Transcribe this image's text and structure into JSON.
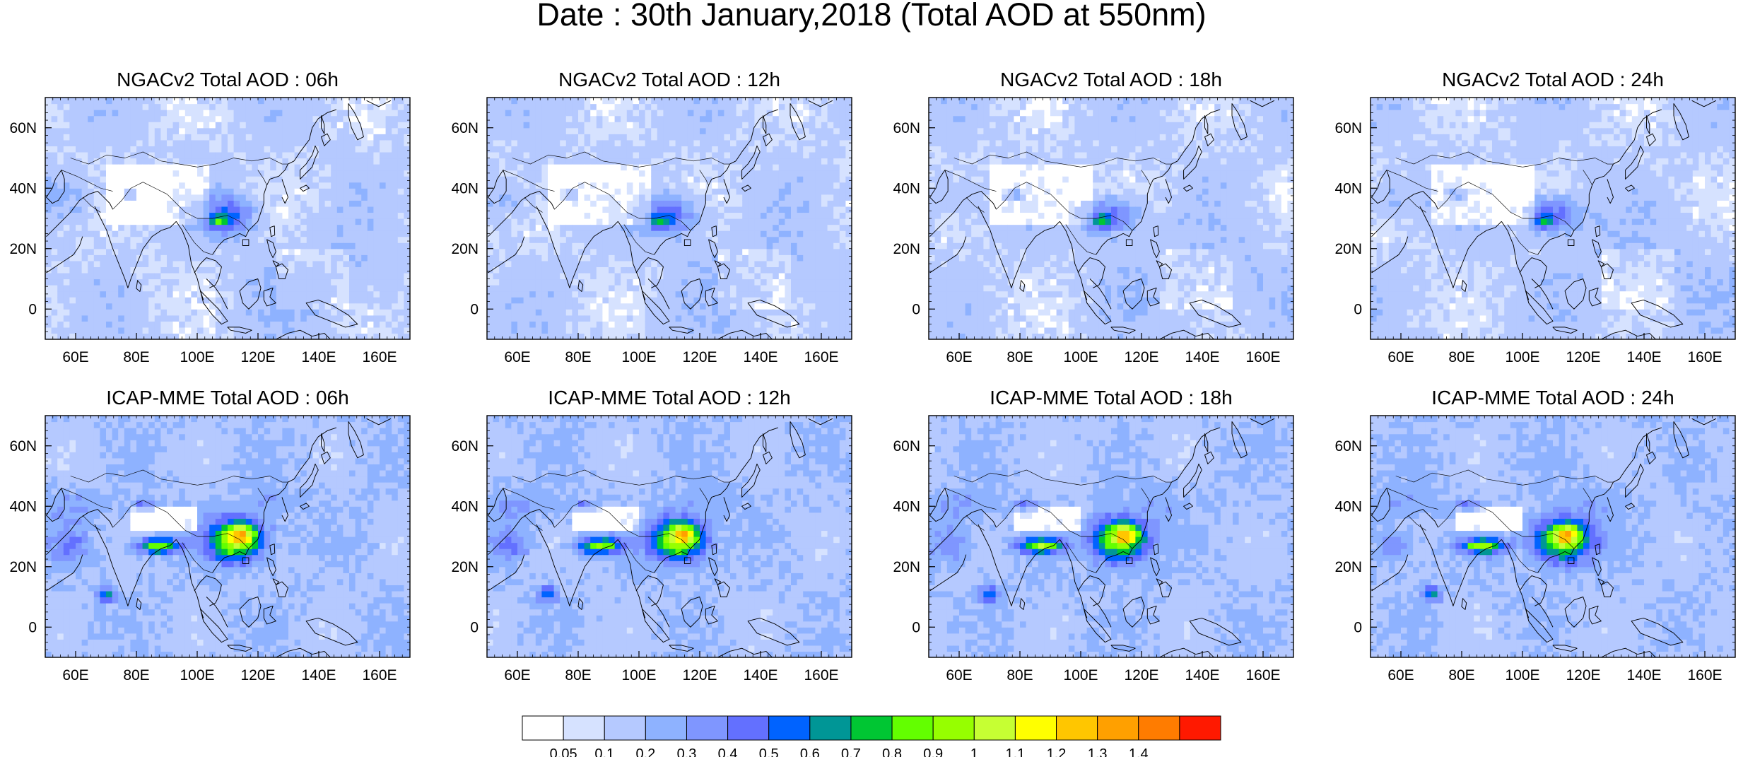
{
  "title": "Date : 30th January,2018 (Total AOD at 550nm)",
  "panels": [
    {
      "title": "NGACv2 Total AOD : 06h",
      "model": "ngac"
    },
    {
      "title": "NGACv2 Total AOD : 12h",
      "model": "ngac"
    },
    {
      "title": "NGACv2 Total AOD : 18h",
      "model": "ngac"
    },
    {
      "title": "NGACv2 Total AOD : 24h",
      "model": "ngac"
    },
    {
      "title": "ICAP-MME Total AOD : 06h",
      "model": "icap"
    },
    {
      "title": "ICAP-MME Total AOD : 12h",
      "model": "icap"
    },
    {
      "title": "ICAP-MME Total AOD : 18h",
      "model": "icap"
    },
    {
      "title": "ICAP-MME Total AOD : 24h",
      "model": "icap"
    }
  ],
  "map": {
    "lon_range": [
      50,
      170
    ],
    "lat_range": [
      -10,
      70
    ],
    "lon_ticks": [
      60,
      80,
      100,
      120,
      140,
      160
    ],
    "lon_tick_labels": [
      "60E",
      "80E",
      "100E",
      "120E",
      "140E",
      "160E"
    ],
    "lat_ticks": [
      60,
      40,
      20,
      0
    ],
    "lat_tick_labels": [
      "60N",
      "40N",
      "20N",
      "0"
    ]
  },
  "colorbar": {
    "labels": [
      "0.05",
      "0.1",
      "0.2",
      "0.3",
      "0.4",
      "0.5",
      "0.6",
      "0.7",
      "0.8",
      "0.9",
      "1",
      "1.1",
      "1.2",
      "1.3",
      "1.4"
    ],
    "colors": [
      "#ffffff",
      "#d6e2ff",
      "#b5c9ff",
      "#8eb2ff",
      "#7f96ff",
      "#6370ff",
      "#0063ff",
      "#009696",
      "#00c633",
      "#63ff00",
      "#96ff00",
      "#c6ff33",
      "#ffff00",
      "#ffc600",
      "#ffa000",
      "#ff7c00",
      "#ff1900"
    ]
  }
}
